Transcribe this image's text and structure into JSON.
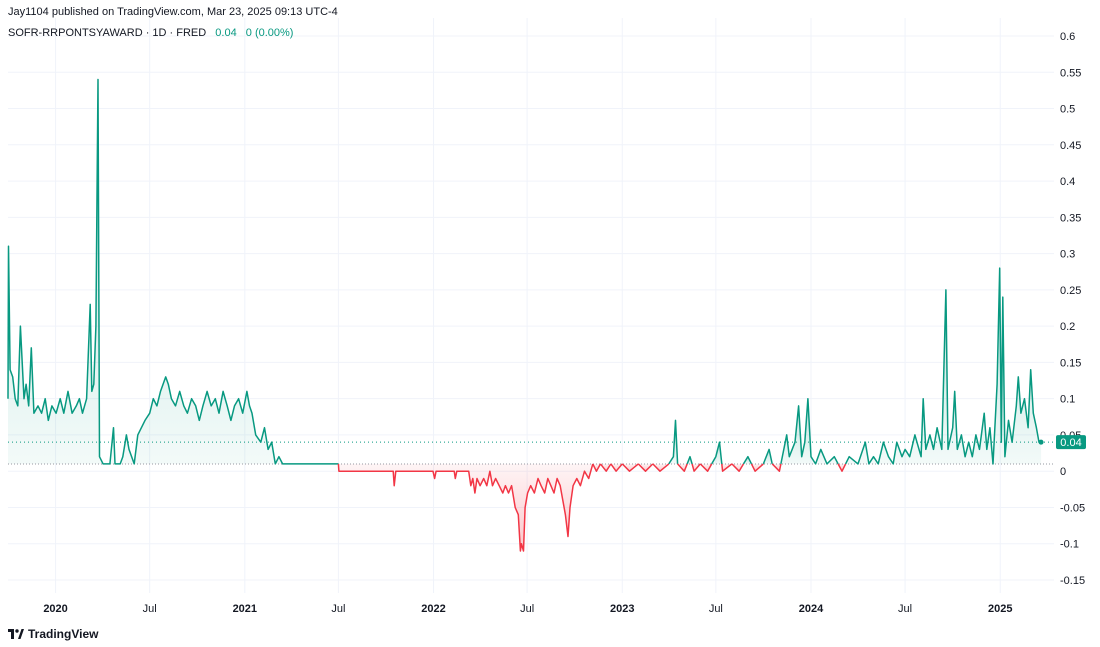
{
  "header": {
    "published": "Jay1104 published on TradingView.com, Mar 23, 2025 09:13 UTC-4",
    "symbol": "SOFR-RRPONTSYAWARD · 1D · FRED",
    "last_value": "0.04",
    "change": "0 (0.00%)"
  },
  "footer": {
    "brand": "TradingView",
    "logo_icon": "tradingview-logo-icon"
  },
  "price_label": "0.04",
  "colors": {
    "up": "#089981",
    "down": "#f23645",
    "grid": "#f0f3fa",
    "text": "#131722"
  },
  "chart_data": {
    "type": "line",
    "title": "SOFR-RRPONTSYAWARD",
    "baseline": 0.01,
    "ylim": [
      -0.17,
      0.62
    ],
    "y_ticks": [
      "0.6",
      "0.55",
      "0.5",
      "0.45",
      "0.4",
      "0.35",
      "0.3",
      "0.25",
      "0.2",
      "0.15",
      "0.1",
      "0.05",
      "0",
      "-0.05",
      "-0.1",
      "-0.15"
    ],
    "x_ticks": [
      {
        "label": "2020",
        "date": "2020-01-01",
        "bold": true
      },
      {
        "label": "Jul",
        "date": "2020-07-01",
        "bold": false
      },
      {
        "label": "2021",
        "date": "2021-01-01",
        "bold": true
      },
      {
        "label": "Jul",
        "date": "2021-07-01",
        "bold": false
      },
      {
        "label": "2022",
        "date": "2022-01-01",
        "bold": true
      },
      {
        "label": "Jul",
        "date": "2022-07-01",
        "bold": false
      },
      {
        "label": "2023",
        "date": "2023-01-01",
        "bold": true
      },
      {
        "label": "Jul",
        "date": "2023-07-01",
        "bold": false
      },
      {
        "label": "2024",
        "date": "2024-01-01",
        "bold": true
      },
      {
        "label": "Jul",
        "date": "2024-07-01",
        "bold": false
      },
      {
        "label": "2025",
        "date": "2025-01-01",
        "bold": true
      }
    ],
    "series": [
      {
        "points": [
          [
            "2019-10-01",
            0.1
          ],
          [
            "2019-10-02",
            0.31
          ],
          [
            "2019-10-05",
            0.14
          ],
          [
            "2019-10-10",
            0.13
          ],
          [
            "2019-10-15",
            0.1
          ],
          [
            "2019-10-20",
            0.09
          ],
          [
            "2019-10-25",
            0.2
          ],
          [
            "2019-11-01",
            0.1
          ],
          [
            "2019-11-05",
            0.12
          ],
          [
            "2019-11-10",
            0.09
          ],
          [
            "2019-11-15",
            0.17
          ],
          [
            "2019-11-20",
            0.08
          ],
          [
            "2019-11-28",
            0.09
          ],
          [
            "2019-12-05",
            0.08
          ],
          [
            "2019-12-12",
            0.1
          ],
          [
            "2019-12-18",
            0.07
          ],
          [
            "2019-12-25",
            0.09
          ],
          [
            "2020-01-02",
            0.08
          ],
          [
            "2020-01-10",
            0.1
          ],
          [
            "2020-01-17",
            0.08
          ],
          [
            "2020-01-25",
            0.11
          ],
          [
            "2020-02-02",
            0.08
          ],
          [
            "2020-02-10",
            0.09
          ],
          [
            "2020-02-16",
            0.1
          ],
          [
            "2020-02-22",
            0.08
          ],
          [
            "2020-03-01",
            0.1
          ],
          [
            "2020-03-08",
            0.23
          ],
          [
            "2020-03-11",
            0.11
          ],
          [
            "2020-03-15",
            0.12
          ],
          [
            "2020-03-19",
            0.2
          ],
          [
            "2020-03-23",
            0.54
          ],
          [
            "2020-03-26",
            0.02
          ],
          [
            "2020-04-02",
            0.01
          ],
          [
            "2020-04-15",
            0.01
          ],
          [
            "2020-04-22",
            0.06
          ],
          [
            "2020-04-25",
            0.01
          ],
          [
            "2020-05-05",
            0.01
          ],
          [
            "2020-05-10",
            0.02
          ],
          [
            "2020-05-17",
            0.05
          ],
          [
            "2020-05-22",
            0.03
          ],
          [
            "2020-06-01",
            0.01
          ],
          [
            "2020-06-08",
            0.05
          ],
          [
            "2020-06-15",
            0.06
          ],
          [
            "2020-06-22",
            0.07
          ],
          [
            "2020-07-01",
            0.08
          ],
          [
            "2020-07-08",
            0.1
          ],
          [
            "2020-07-15",
            0.09
          ],
          [
            "2020-07-22",
            0.11
          ],
          [
            "2020-08-01",
            0.13
          ],
          [
            "2020-08-06",
            0.12
          ],
          [
            "2020-08-12",
            0.1
          ],
          [
            "2020-08-20",
            0.09
          ],
          [
            "2020-08-28",
            0.11
          ],
          [
            "2020-09-05",
            0.09
          ],
          [
            "2020-09-12",
            0.08
          ],
          [
            "2020-09-20",
            0.1
          ],
          [
            "2020-09-28",
            0.09
          ],
          [
            "2020-10-05",
            0.07
          ],
          [
            "2020-10-12",
            0.09
          ],
          [
            "2020-10-20",
            0.11
          ],
          [
            "2020-10-28",
            0.09
          ],
          [
            "2020-11-05",
            0.1
          ],
          [
            "2020-11-12",
            0.08
          ],
          [
            "2020-11-20",
            0.11
          ],
          [
            "2020-11-28",
            0.09
          ],
          [
            "2020-12-05",
            0.07
          ],
          [
            "2020-12-12",
            0.09
          ],
          [
            "2020-12-20",
            0.1
          ],
          [
            "2020-12-28",
            0.08
          ],
          [
            "2021-01-05",
            0.11
          ],
          [
            "2021-01-10",
            0.09
          ],
          [
            "2021-01-15",
            0.08
          ],
          [
            "2021-01-22",
            0.05
          ],
          [
            "2021-02-01",
            0.04
          ],
          [
            "2021-02-08",
            0.06
          ],
          [
            "2021-02-15",
            0.03
          ],
          [
            "2021-02-22",
            0.04
          ],
          [
            "2021-03-01",
            0.01
          ],
          [
            "2021-03-08",
            0.02
          ],
          [
            "2021-03-15",
            0.01
          ],
          [
            "2021-04-01",
            0.01
          ],
          [
            "2021-07-01",
            0.01
          ],
          [
            "2021-07-02",
            0.0
          ],
          [
            "2021-10-15",
            0.0
          ],
          [
            "2021-10-17",
            -0.02
          ],
          [
            "2021-10-20",
            0.0
          ],
          [
            "2021-12-31",
            0.0
          ],
          [
            "2022-01-03",
            -0.01
          ],
          [
            "2022-01-06",
            0.0
          ],
          [
            "2022-02-10",
            0.0
          ],
          [
            "2022-02-12",
            -0.01
          ],
          [
            "2022-02-15",
            0.0
          ],
          [
            "2022-03-10",
            0.0
          ],
          [
            "2022-03-14",
            -0.02
          ],
          [
            "2022-03-18",
            -0.01
          ],
          [
            "2022-03-22",
            -0.03
          ],
          [
            "2022-03-26",
            -0.01
          ],
          [
            "2022-04-01",
            -0.02
          ],
          [
            "2022-04-08",
            -0.01
          ],
          [
            "2022-04-14",
            -0.02
          ],
          [
            "2022-04-20",
            0.0
          ],
          [
            "2022-04-25",
            -0.02
          ],
          [
            "2022-05-01",
            -0.01
          ],
          [
            "2022-05-08",
            -0.02
          ],
          [
            "2022-05-15",
            -0.03
          ],
          [
            "2022-05-20",
            -0.02
          ],
          [
            "2022-05-26",
            -0.03
          ],
          [
            "2022-06-01",
            -0.02
          ],
          [
            "2022-06-08",
            -0.05
          ],
          [
            "2022-06-14",
            -0.06
          ],
          [
            "2022-06-18",
            -0.11
          ],
          [
            "2022-06-20",
            -0.1
          ],
          [
            "2022-06-24",
            -0.11
          ],
          [
            "2022-06-27",
            -0.05
          ],
          [
            "2022-07-02",
            -0.03
          ],
          [
            "2022-07-08",
            -0.02
          ],
          [
            "2022-07-15",
            -0.03
          ],
          [
            "2022-07-22",
            -0.01
          ],
          [
            "2022-07-28",
            -0.02
          ],
          [
            "2022-08-04",
            -0.03
          ],
          [
            "2022-08-10",
            -0.01
          ],
          [
            "2022-08-16",
            -0.02
          ],
          [
            "2022-08-22",
            -0.03
          ],
          [
            "2022-08-28",
            -0.01
          ],
          [
            "2022-09-03",
            -0.02
          ],
          [
            "2022-09-08",
            -0.04
          ],
          [
            "2022-09-13",
            -0.06
          ],
          [
            "2022-09-18",
            -0.09
          ],
          [
            "2022-09-22",
            -0.05
          ],
          [
            "2022-09-28",
            -0.02
          ],
          [
            "2022-10-05",
            -0.01
          ],
          [
            "2022-10-12",
            -0.02
          ],
          [
            "2022-10-20",
            0.0
          ],
          [
            "2022-10-28",
            -0.01
          ],
          [
            "2022-11-05",
            0.01
          ],
          [
            "2022-11-12",
            0.0
          ],
          [
            "2022-11-20",
            0.01
          ],
          [
            "2022-12-01",
            0.0
          ],
          [
            "2022-12-10",
            0.01
          ],
          [
            "2022-12-20",
            0.0
          ],
          [
            "2023-01-01",
            0.01
          ],
          [
            "2023-01-15",
            0.0
          ],
          [
            "2023-02-01",
            0.01
          ],
          [
            "2023-02-15",
            0.0
          ],
          [
            "2023-03-01",
            0.01
          ],
          [
            "2023-03-15",
            0.0
          ],
          [
            "2023-04-01",
            0.01
          ],
          [
            "2023-04-10",
            0.02
          ],
          [
            "2023-04-14",
            0.07
          ],
          [
            "2023-04-18",
            0.01
          ],
          [
            "2023-05-01",
            0.0
          ],
          [
            "2023-05-12",
            0.02
          ],
          [
            "2023-05-20",
            0.0
          ],
          [
            "2023-06-01",
            0.01
          ],
          [
            "2023-06-15",
            0.0
          ],
          [
            "2023-07-01",
            0.02
          ],
          [
            "2023-07-08",
            0.04
          ],
          [
            "2023-07-14",
            0.0
          ],
          [
            "2023-08-01",
            0.01
          ],
          [
            "2023-08-15",
            0.0
          ],
          [
            "2023-09-01",
            0.02
          ],
          [
            "2023-09-15",
            0.0
          ],
          [
            "2023-10-01",
            0.01
          ],
          [
            "2023-10-12",
            0.03
          ],
          [
            "2023-10-18",
            0.01
          ],
          [
            "2023-11-01",
            0.0
          ],
          [
            "2023-11-15",
            0.05
          ],
          [
            "2023-11-20",
            0.02
          ],
          [
            "2023-12-01",
            0.04
          ],
          [
            "2023-12-08",
            0.09
          ],
          [
            "2023-12-14",
            0.02
          ],
          [
            "2023-12-20",
            0.04
          ],
          [
            "2023-12-26",
            0.1
          ],
          [
            "2024-01-01",
            0.02
          ],
          [
            "2024-01-10",
            0.01
          ],
          [
            "2024-01-20",
            0.03
          ],
          [
            "2024-02-01",
            0.01
          ],
          [
            "2024-02-15",
            0.02
          ],
          [
            "2024-03-01",
            0.0
          ],
          [
            "2024-03-15",
            0.02
          ],
          [
            "2024-04-01",
            0.01
          ],
          [
            "2024-04-15",
            0.04
          ],
          [
            "2024-04-22",
            0.01
          ],
          [
            "2024-05-01",
            0.02
          ],
          [
            "2024-05-10",
            0.01
          ],
          [
            "2024-05-20",
            0.04
          ],
          [
            "2024-05-30",
            0.02
          ],
          [
            "2024-06-08",
            0.01
          ],
          [
            "2024-06-15",
            0.04
          ],
          [
            "2024-06-25",
            0.02
          ],
          [
            "2024-07-01",
            0.03
          ],
          [
            "2024-07-10",
            0.02
          ],
          [
            "2024-07-20",
            0.05
          ],
          [
            "2024-08-01",
            0.02
          ],
          [
            "2024-08-05",
            0.1
          ],
          [
            "2024-08-10",
            0.03
          ],
          [
            "2024-08-18",
            0.05
          ],
          [
            "2024-08-25",
            0.03
          ],
          [
            "2024-09-01",
            0.06
          ],
          [
            "2024-09-10",
            0.03
          ],
          [
            "2024-09-18",
            0.25
          ],
          [
            "2024-09-22",
            0.03
          ],
          [
            "2024-10-01",
            0.06
          ],
          [
            "2024-10-05",
            0.11
          ],
          [
            "2024-10-10",
            0.03
          ],
          [
            "2024-10-18",
            0.05
          ],
          [
            "2024-10-25",
            0.02
          ],
          [
            "2024-11-01",
            0.04
          ],
          [
            "2024-11-08",
            0.02
          ],
          [
            "2024-11-15",
            0.05
          ],
          [
            "2024-11-22",
            0.03
          ],
          [
            "2024-12-01",
            0.08
          ],
          [
            "2024-12-06",
            0.03
          ],
          [
            "2024-12-12",
            0.06
          ],
          [
            "2024-12-18",
            0.01
          ],
          [
            "2024-12-26",
            0.12
          ],
          [
            "2024-12-31",
            0.28
          ],
          [
            "2025-01-03",
            0.04
          ],
          [
            "2025-01-06",
            0.24
          ],
          [
            "2025-01-10",
            0.02
          ],
          [
            "2025-01-17",
            0.07
          ],
          [
            "2025-01-24",
            0.04
          ],
          [
            "2025-02-01",
            0.09
          ],
          [
            "2025-02-05",
            0.13
          ],
          [
            "2025-02-10",
            0.08
          ],
          [
            "2025-02-17",
            0.1
          ],
          [
            "2025-02-24",
            0.06
          ],
          [
            "2025-03-01",
            0.14
          ],
          [
            "2025-03-06",
            0.08
          ],
          [
            "2025-03-12",
            0.06
          ],
          [
            "2025-03-17",
            0.04
          ],
          [
            "2025-03-21",
            0.04
          ]
        ]
      }
    ]
  }
}
